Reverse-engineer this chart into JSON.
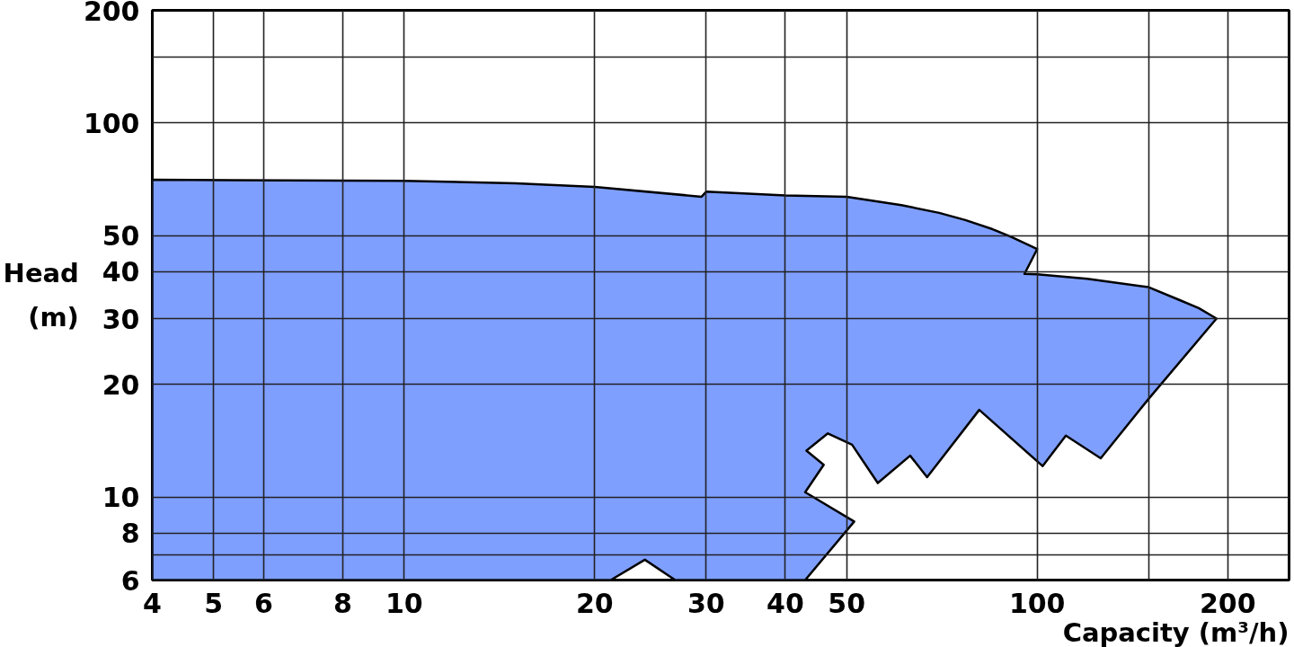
{
  "chart_data": {
    "type": "area",
    "xlabel": "Capacity (m³/h)",
    "ylabel": "Head (m)",
    "log": "xy",
    "grid": true,
    "xlim": [
      4,
      250
    ],
    "ylim": [
      6,
      200
    ],
    "xticks": [
      4,
      5,
      6,
      8,
      10,
      20,
      30,
      40,
      50,
      100,
      {
        "value": 150,
        "label": null
      },
      200
    ],
    "yticks": [
      6,
      {
        "value": 7,
        "label": null
      },
      8,
      10,
      20,
      30,
      40,
      50,
      100,
      {
        "value": 150,
        "label": null
      },
      200
    ],
    "series": [
      {
        "color": "#7f9fff",
        "x": [
          4,
          4,
          10,
          15,
          20,
          29.5,
          30,
          40,
          50,
          61,
          70,
          77,
          85,
          91,
          100,
          95.5,
          100,
          120,
          150,
          168,
          180,
          192,
          150,
          126,
          111,
          102,
          81,
          67,
          63,
          56,
          51,
          46.7,
          43.2,
          46,
          43,
          51.4,
          43,
          26.8,
          24,
          21.2
        ],
        "values": [
          6,
          70.5,
          70,
          69,
          67.5,
          63.5,
          65.5,
          64,
          63.5,
          60.3,
          57.5,
          55,
          52,
          49.6,
          46,
          39.5,
          39.4,
          38.3,
          36.4,
          33.6,
          32,
          30,
          18.3,
          12.7,
          14.6,
          12.1,
          17.1,
          11.3,
          12.9,
          10.9,
          13.8,
          14.8,
          13.3,
          12.2,
          10.3,
          8.6,
          6,
          6,
          6.8,
          6
        ]
      }
    ]
  }
}
